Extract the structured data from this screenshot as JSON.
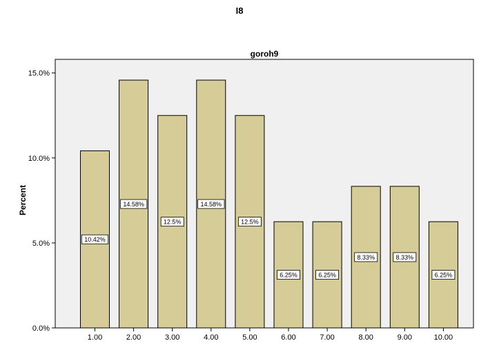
{
  "page_title": "I8",
  "chart_data": {
    "type": "bar",
    "title": "goroh9",
    "xlabel": "",
    "ylabel": "Percent",
    "categories": [
      "1.00",
      "2.00",
      "3.00",
      "4.00",
      "5.00",
      "6.00",
      "7.00",
      "8.00",
      "9.00",
      "10.00"
    ],
    "values": [
      10.42,
      14.58,
      12.5,
      14.58,
      12.5,
      6.25,
      6.25,
      8.33,
      8.33,
      6.25
    ],
    "data_labels": [
      "10.42%",
      "14.58%",
      "12.5%",
      "14.58%",
      "12.5%",
      "6.25%",
      "6.25%",
      "8.33%",
      "8.33%",
      "6.25%"
    ],
    "ylim": [
      0,
      15.8
    ],
    "yticks": [
      0,
      5,
      10,
      15
    ],
    "ytick_labels": [
      "0.0%",
      "5.0%",
      "10.0%",
      "15.0%"
    ],
    "grid": false,
    "legend": "none",
    "colors": {
      "bar_fill": "#d5cc98",
      "bar_stroke": "#000000",
      "plot_background": "#f0f0f0",
      "label_background": "#ffffff"
    }
  }
}
